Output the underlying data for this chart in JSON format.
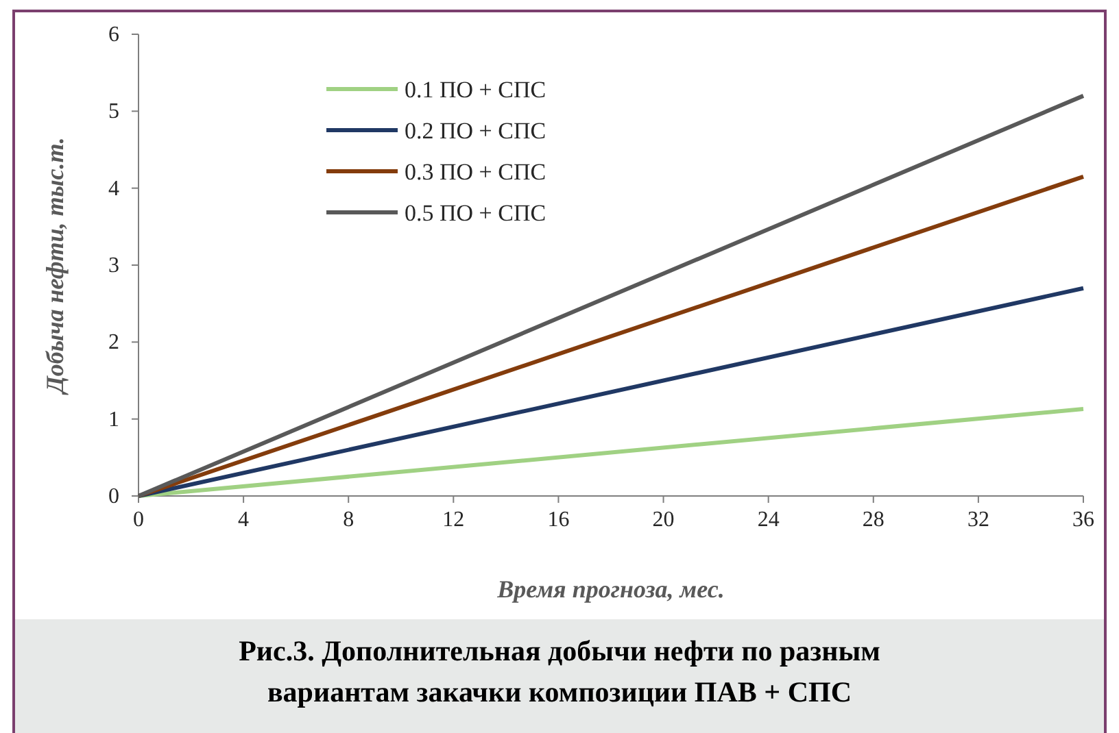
{
  "chart_data": {
    "type": "line",
    "title": "Рис.3. Дополнительная добычи нефти по разным вариантам закачки композиции ПАВ + СПС",
    "xlabel": "Время прогноза, мес.",
    "ylabel": "Добыча нефти, тыс.т.",
    "x": [
      0,
      36
    ],
    "xlim": [
      0,
      36
    ],
    "xticks": [
      0,
      4,
      8,
      12,
      16,
      20,
      24,
      28,
      32,
      36
    ],
    "ylim": [
      0,
      6
    ],
    "yticks": [
      0,
      1,
      2,
      3,
      4,
      5,
      6
    ],
    "series": [
      {
        "name": "0.1 ПО + СПС",
        "color": "#a0d183",
        "values": [
          0,
          1.13
        ]
      },
      {
        "name": "0.2 ПО + СПС",
        "color": "#203864",
        "values": [
          0,
          2.7
        ]
      },
      {
        "name": "0.3 ПО + СПС",
        "color": "#843c0c",
        "values": [
          0,
          4.15
        ]
      },
      {
        "name": "0.5 ПО + СПС",
        "color": "#595959",
        "values": [
          0,
          5.2
        ]
      }
    ],
    "legend": "top left",
    "grid": false,
    "marker": "none",
    "line_style": "solid"
  }
}
